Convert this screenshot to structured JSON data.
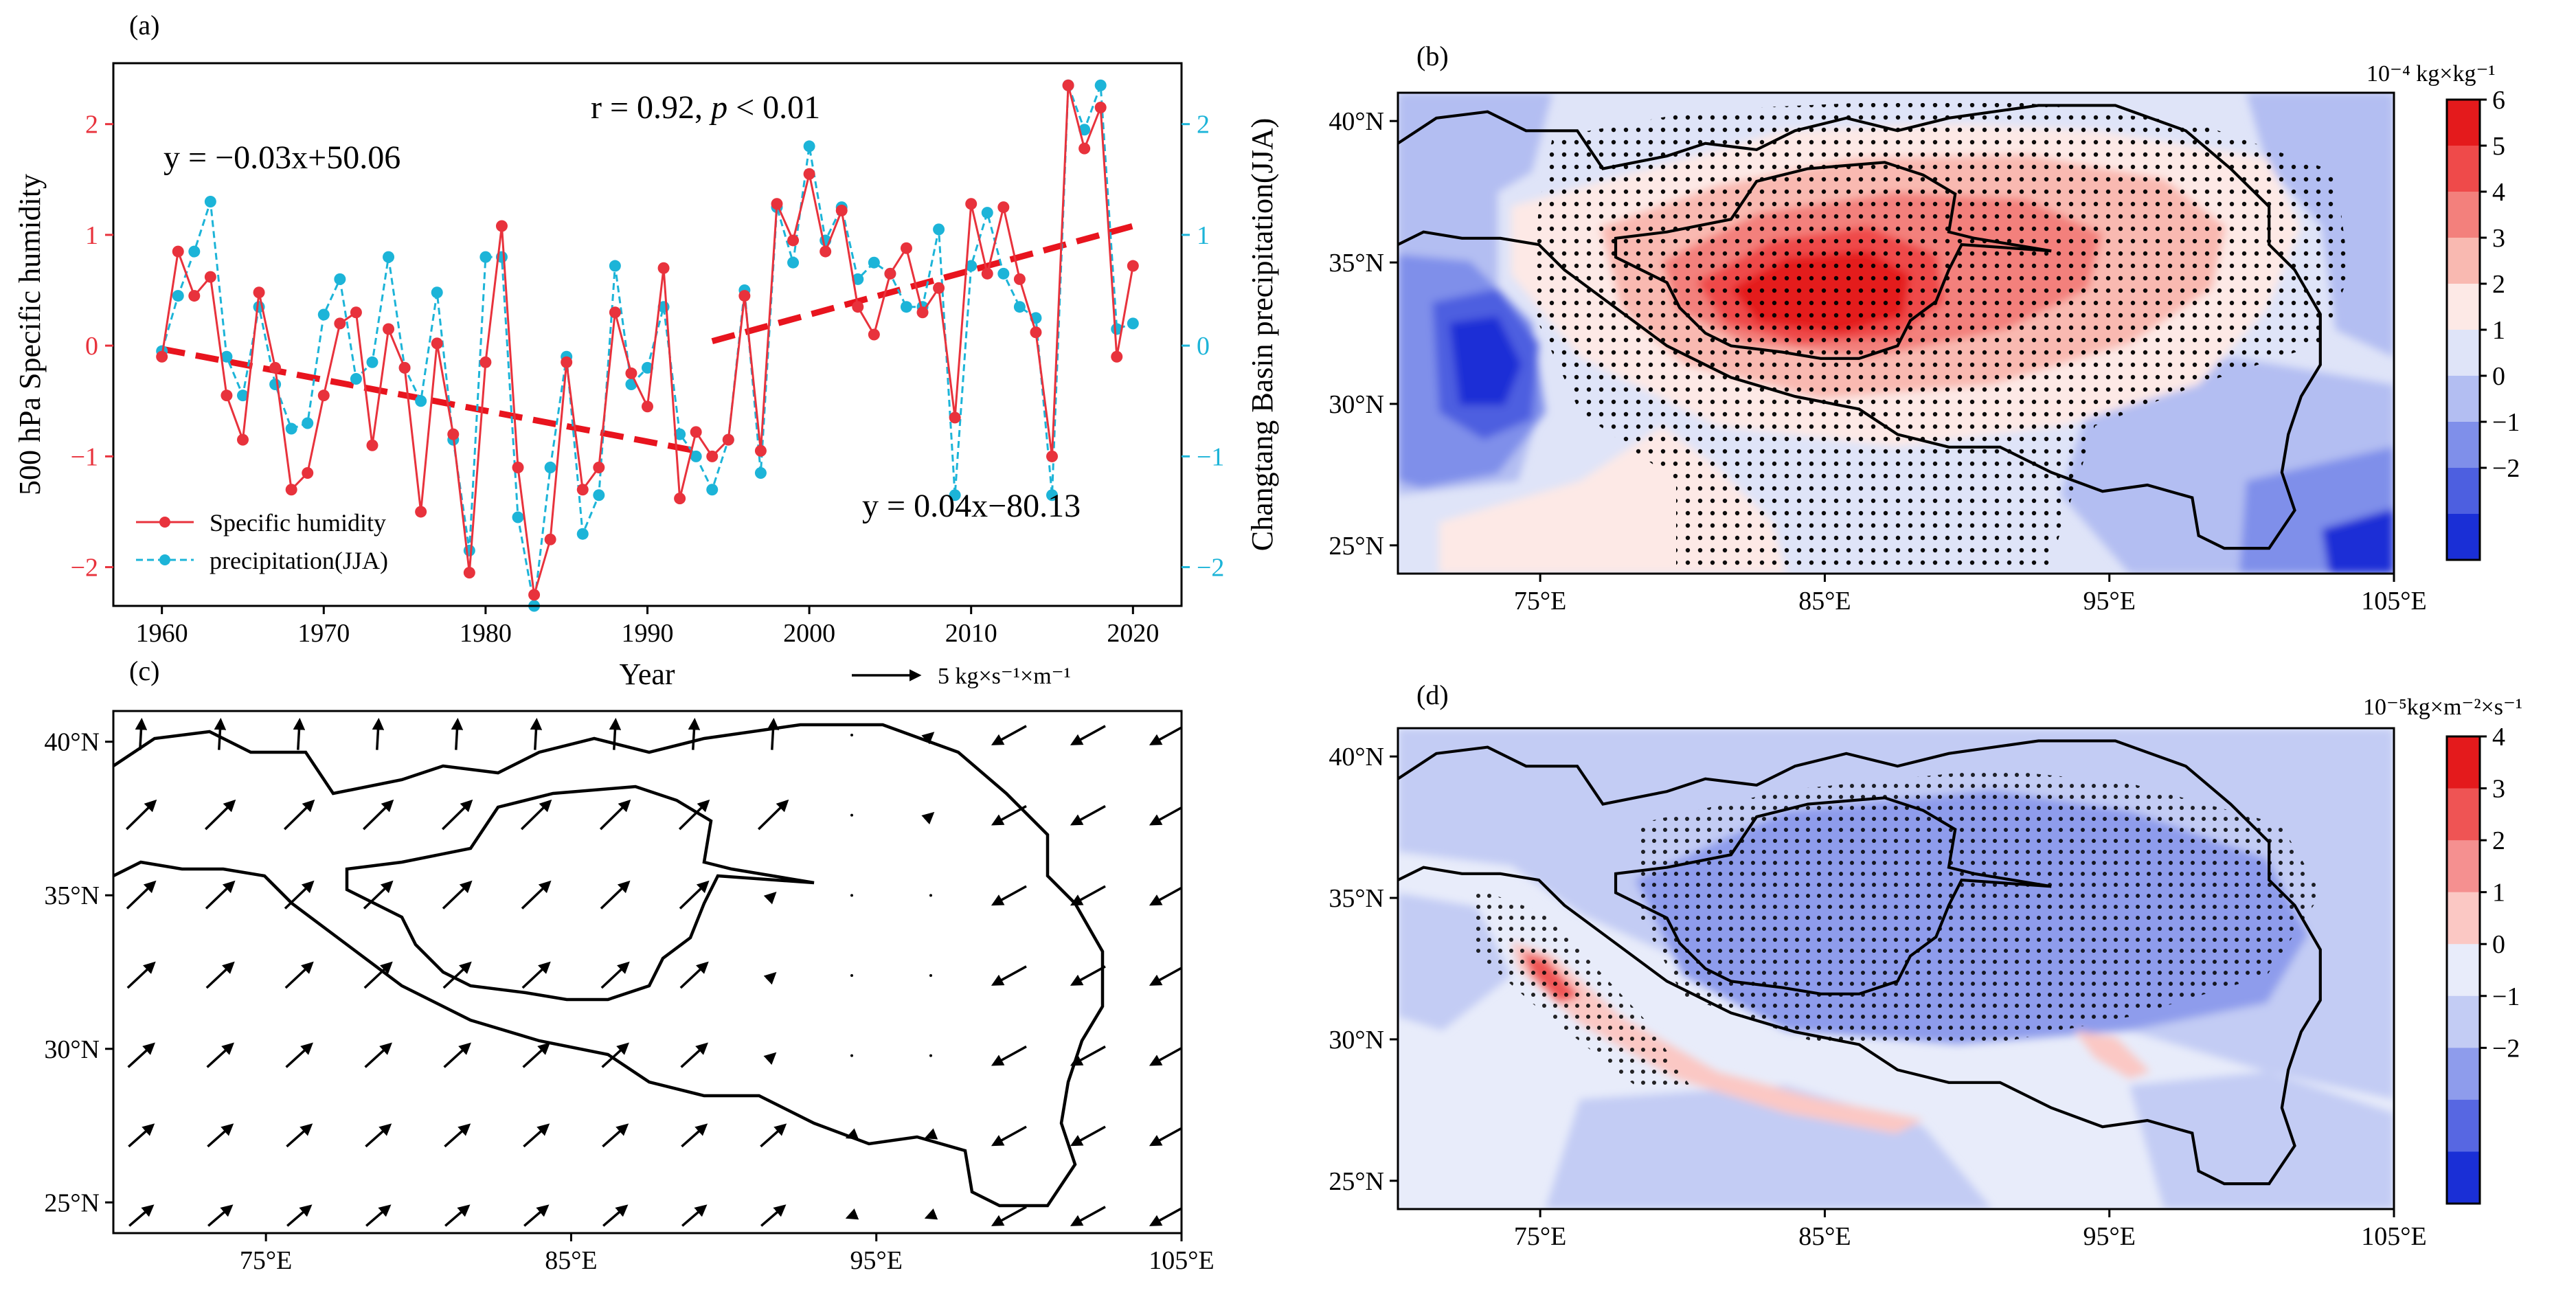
{
  "panels": {
    "a": {
      "label": "(a)",
      "xlabel": "Year",
      "ylabel_left": "500 hPa Specific humidity",
      "ylabel_right": "Changtang Basin precipitation(JJA)",
      "eq1": "y = −0.03x+50.06",
      "eq2": "y = 0.04x−80.13",
      "corr_r": "r = 0.92, ",
      "corr_p": "p",
      "corr_tail": " < 0.01",
      "legend": {
        "s1": "Specific humidity",
        "s2": "precipitation(JJA)"
      }
    },
    "b": {
      "label": "(b)",
      "unit": "10⁻⁴ kg×kg⁻¹"
    },
    "c": {
      "label": "(c)",
      "ref_vector": "5 kg×s⁻¹×m⁻¹"
    },
    "d": {
      "label": "(d)",
      "unit": "10⁻⁵kg×m⁻²×s⁻¹"
    }
  },
  "colors": {
    "humidity": "#e8323c",
    "precip": "#1cb4d8",
    "trend": "#e8141e",
    "border": "#000000"
  },
  "colorbars": {
    "b": {
      "ticks": [
        "6",
        "5",
        "4",
        "3",
        "2",
        "1",
        "0",
        "−1",
        "−2"
      ],
      "colors": [
        "#e41a1c",
        "#ef4a4a",
        "#f3807c",
        "#f9b9b1",
        "#fde9e6",
        "#dfe4f8",
        "#b3bef2",
        "#7f8fea",
        "#4d5fe0",
        "#1a2fd6"
      ]
    },
    "d": {
      "ticks": [
        "4",
        "3",
        "2",
        "1",
        "0",
        "−1",
        "−2"
      ],
      "colors": [
        "#e41a1c",
        "#ef5454",
        "#f59090",
        "#fbc8c4",
        "#e8ecfa",
        "#c3ccf4",
        "#8e9cec",
        "#5767e2",
        "#1a2fd6"
      ]
    }
  },
  "map_axes": {
    "x_ticks": [
      "75°E",
      "85°E",
      "95°E",
      "105°E"
    ],
    "y_ticks": [
      "40°N",
      "35°N",
      "30°N",
      "25°N"
    ]
  },
  "chart_data": [
    {
      "type": "line",
      "panel": "a",
      "xlabel": "Year",
      "ylabel": "500 hPa Specific humidity",
      "ylabel_right": "Changtang Basin precipitation(JJA)",
      "xlim": [
        1957,
        2023
      ],
      "ylim": [
        -2.35,
        2.55
      ],
      "ylim_right": [
        -2.35,
        2.55
      ],
      "x_ticks": [
        1960,
        1970,
        1980,
        1990,
        2000,
        2010,
        2020
      ],
      "y_ticks": [
        -2,
        -1,
        0,
        1,
        2
      ],
      "y_ticks_right": [
        -2,
        -1,
        0,
        1,
        2
      ],
      "x": [
        1960,
        1961,
        1962,
        1963,
        1964,
        1965,
        1966,
        1967,
        1968,
        1969,
        1970,
        1971,
        1972,
        1973,
        1974,
        1975,
        1976,
        1977,
        1978,
        1979,
        1980,
        1981,
        1982,
        1983,
        1984,
        1985,
        1986,
        1987,
        1988,
        1989,
        1990,
        1991,
        1992,
        1993,
        1994,
        1995,
        1996,
        1997,
        1998,
        1999,
        2000,
        2001,
        2002,
        2003,
        2004,
        2005,
        2006,
        2007,
        2008,
        2009,
        2010,
        2011,
        2012,
        2013,
        2014,
        2015,
        2016,
        2017,
        2018,
        2019,
        2020
      ],
      "series": [
        {
          "name": "Specific humidity",
          "axis": "left",
          "values": [
            -0.1,
            0.85,
            0.45,
            0.62,
            -0.45,
            -0.85,
            0.48,
            -0.2,
            -1.3,
            -1.15,
            -0.45,
            0.2,
            0.3,
            -0.9,
            0.15,
            -0.2,
            -1.5,
            0.02,
            -0.8,
            -2.05,
            -0.15,
            1.08,
            -1.1,
            -2.25,
            -1.75,
            -0.15,
            -1.3,
            -1.1,
            0.3,
            -0.25,
            -0.55,
            0.7,
            -1.38,
            -0.78,
            -1.0,
            -0.85,
            0.45,
            -0.95,
            1.28,
            0.95,
            1.55,
            0.85,
            1.22,
            0.35,
            0.1,
            0.65,
            0.88,
            0.3,
            0.52,
            -0.65,
            1.28,
            0.65,
            1.25,
            0.6,
            0.12,
            -1.0,
            2.35,
            1.78,
            2.15,
            -0.1,
            0.72
          ]
        },
        {
          "name": "precipitation(JJA)",
          "axis": "right",
          "values": [
            -0.05,
            0.45,
            0.85,
            1.3,
            -0.1,
            -0.45,
            0.35,
            -0.35,
            -0.75,
            -0.7,
            0.28,
            0.6,
            -0.3,
            -0.15,
            0.8,
            -0.2,
            -0.5,
            0.48,
            -0.85,
            -1.85,
            0.8,
            0.8,
            -1.55,
            -2.35,
            -1.1,
            -0.1,
            -1.7,
            -1.35,
            0.72,
            -0.35,
            -0.2,
            0.35,
            -0.8,
            -1.0,
            -1.3,
            -0.85,
            0.5,
            -1.15,
            1.25,
            0.75,
            1.8,
            0.95,
            1.25,
            0.6,
            0.75,
            0.65,
            0.35,
            0.35,
            1.05,
            -1.35,
            0.72,
            1.2,
            0.65,
            0.35,
            0.25,
            -1.35,
            2.35,
            1.95,
            2.35,
            0.15,
            0.2
          ]
        },
        {
          "name": "",
          "values": [
            [
              1960,
              -0.03
            ],
            [
              1993,
              -0.95
            ]
          ]
        },
        {
          "name": "",
          "values": [
            [
              1994,
              0.04
            ],
            [
              2020,
              1.08
            ]
          ]
        }
      ]
    },
    {
      "type": "heatmap",
      "panel": "b",
      "xlim": [
        70,
        105
      ],
      "ylim": [
        24,
        41
      ],
      "x_ticks": [
        "75°E",
        "85°E",
        "95°E",
        "105°E"
      ],
      "y_ticks": [
        "40°N",
        "35°N",
        "30°N",
        "25°N"
      ],
      "colorbar_range": [
        -2,
        6
      ],
      "colorbar_ticks": [
        6,
        5,
        4,
        3,
        2,
        1,
        0,
        -1,
        -2
      ],
      "unit": "10⁻⁴ kg×kg⁻¹"
    },
    {
      "type": "other",
      "panel": "c",
      "xlim": [
        70,
        105
      ],
      "ylim": [
        24,
        41
      ],
      "x_ticks": [
        "75°E",
        "85°E",
        "95°E",
        "105°E"
      ],
      "y_ticks": [
        "40°N",
        "35°N",
        "30°N",
        "25°N"
      ],
      "reference_vector": "5 kg×s⁻¹×m⁻¹"
    },
    {
      "type": "heatmap",
      "panel": "d",
      "xlim": [
        70,
        105
      ],
      "ylim": [
        24,
        41
      ],
      "x_ticks": [
        "75°E",
        "85°E",
        "95°E",
        "105°E"
      ],
      "y_ticks": [
        "40°N",
        "35°N",
        "30°N",
        "25°N"
      ],
      "colorbar_range": [
        -2.5,
        4
      ],
      "colorbar_ticks": [
        4,
        3,
        2,
        1,
        0,
        -1,
        -2
      ],
      "unit": "10⁻⁵kg×m⁻²×s⁻¹"
    }
  ]
}
